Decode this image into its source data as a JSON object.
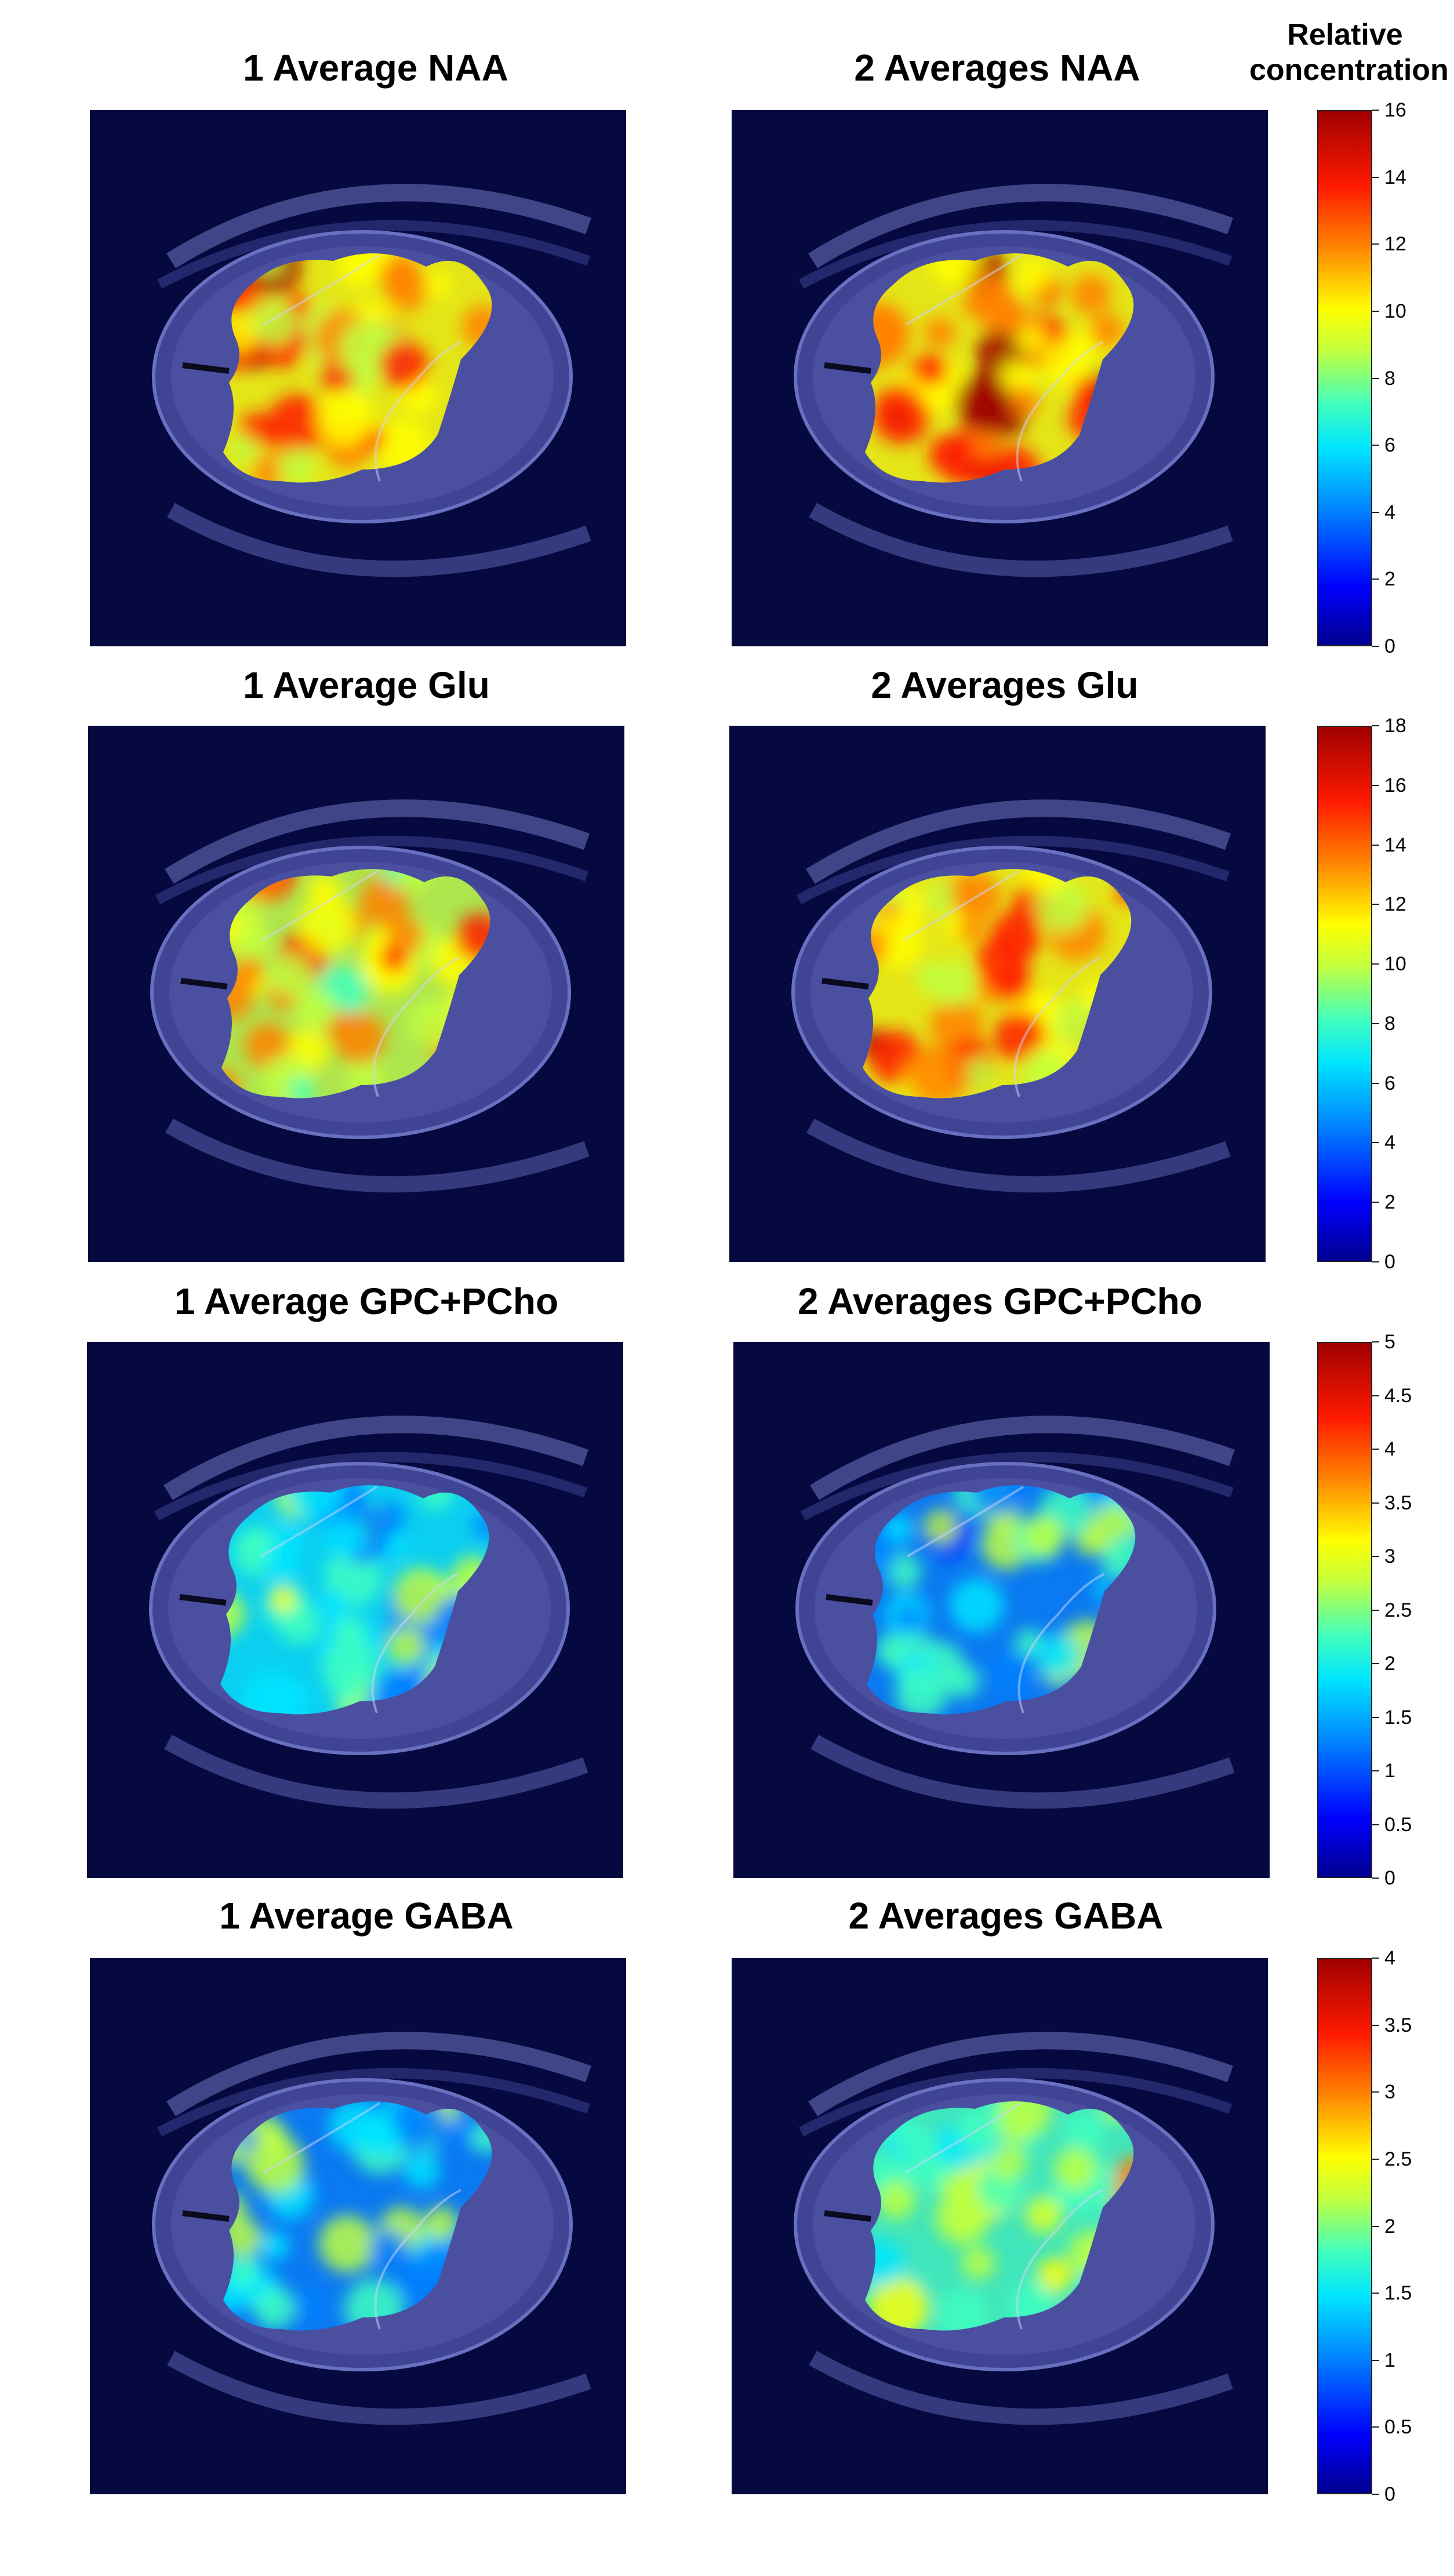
{
  "colorbar_header": {
    "line1": "Relative",
    "line2": "concentration"
  },
  "rows": [
    {
      "left_title": "1 Average NAA",
      "right_title": "2 Averages NAA",
      "colorbar_ticks": [
        "0",
        "2",
        "4",
        "6",
        "8",
        "10",
        "12",
        "14",
        "16"
      ]
    },
    {
      "left_title": "1 Average Glu",
      "right_title": "2 Averages Glu",
      "colorbar_ticks": [
        "0",
        "2",
        "4",
        "6",
        "8",
        "10",
        "12",
        "14",
        "16",
        "18"
      ]
    },
    {
      "left_title": "1 Average GPC+PCho",
      "right_title": "2 Averages GPC+PCho",
      "colorbar_ticks": [
        "0",
        "0.5",
        "1",
        "1.5",
        "2",
        "2.5",
        "3",
        "3.5",
        "4",
        "4.5",
        "5"
      ]
    },
    {
      "left_title": "1 Average GABA",
      "right_title": "2 Averages GABA",
      "colorbar_ticks": [
        "0",
        "0.5",
        "1",
        "1.5",
        "2",
        "2.5",
        "3",
        "3.5",
        "4"
      ]
    }
  ],
  "colors": {
    "background": "#06093f",
    "brain": "#4a4fa0",
    "colormap": [
      "#00008f",
      "#0000ff",
      "#0080ff",
      "#00e5ff",
      "#40ffbf",
      "#c0ff40",
      "#ffff00",
      "#ff8000",
      "#ff1a00",
      "#a00000"
    ]
  },
  "heat_levels": {
    "row0": {
      "left": 0.72,
      "right": 0.78
    },
    "row1": {
      "left": 0.66,
      "right": 0.7
    },
    "row2": {
      "left": 0.4,
      "right": 0.36
    },
    "row3": {
      "left": 0.38,
      "right": 0.52
    }
  }
}
